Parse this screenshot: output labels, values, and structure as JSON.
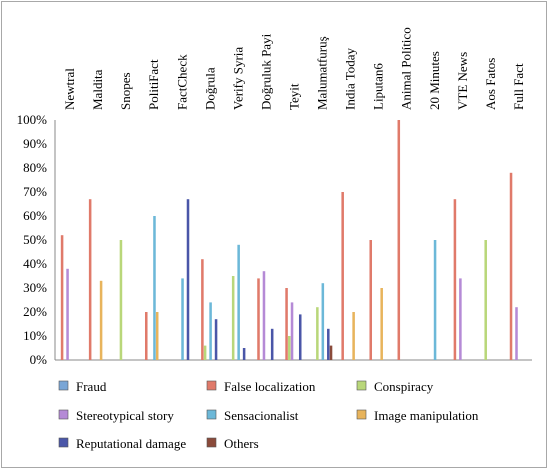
{
  "chart_data": {
    "type": "bar",
    "categories": [
      "Newtral",
      "Maldita",
      "Snopes",
      "PolitiFact",
      "FactCheck",
      "Doğrula",
      "Verify Syria",
      "Doğruluk Payi",
      "Teyit",
      "Malumatfuruş",
      "India Today",
      "Liputan6",
      "Animal Político",
      "20 Minutes",
      "VTE News",
      "Aos Fatos",
      "Full Fact"
    ],
    "ylim": [
      0,
      100
    ],
    "yticks": [
      "0%",
      "10%",
      "20%",
      "30%",
      "40%",
      "50%",
      "60%",
      "70%",
      "80%",
      "90%",
      "100%"
    ],
    "grid": false,
    "legend_position": "bottom",
    "series": [
      {
        "name": "Fraud",
        "color": "#7aa6d6",
        "values": [
          0,
          0,
          0,
          0,
          0,
          0,
          0,
          0,
          0,
          0,
          0,
          0,
          0,
          0,
          0,
          0,
          0
        ]
      },
      {
        "name": "False localization",
        "color": "#e07a6a",
        "values": [
          52,
          67,
          0,
          20,
          0,
          42,
          0,
          34,
          30,
          0,
          70,
          50,
          100,
          0,
          67,
          0,
          78
        ]
      },
      {
        "name": "Conspiracy",
        "color": "#b9d77a",
        "values": [
          0,
          0,
          50,
          0,
          0,
          6,
          35,
          0,
          10,
          22,
          0,
          0,
          0,
          0,
          0,
          50,
          0
        ]
      },
      {
        "name": "Stereotypical story",
        "color": "#b58ad6",
        "values": [
          38,
          0,
          0,
          0,
          0,
          0,
          0,
          37,
          24,
          0,
          0,
          0,
          0,
          0,
          34,
          0,
          22
        ]
      },
      {
        "name": "Sensacionalist",
        "color": "#6cb8d8",
        "values": [
          0,
          0,
          0,
          60,
          34,
          24,
          48,
          0,
          0,
          32,
          0,
          0,
          0,
          50,
          0,
          0,
          0
        ]
      },
      {
        "name": "Image manipulation",
        "color": "#e8b45c",
        "values": [
          0,
          33,
          0,
          20,
          0,
          0,
          0,
          0,
          0,
          0,
          20,
          30,
          0,
          0,
          0,
          0,
          0
        ]
      },
      {
        "name": "Reputational damage",
        "color": "#4a56a8",
        "values": [
          0,
          0,
          0,
          0,
          67,
          17,
          5,
          13,
          19,
          13,
          0,
          0,
          0,
          0,
          0,
          0,
          0
        ]
      },
      {
        "name": "Others",
        "color": "#8a4a3a",
        "values": [
          0,
          0,
          0,
          0,
          0,
          0,
          0,
          0,
          0,
          6,
          0,
          0,
          0,
          0,
          0,
          0,
          0
        ]
      }
    ]
  }
}
